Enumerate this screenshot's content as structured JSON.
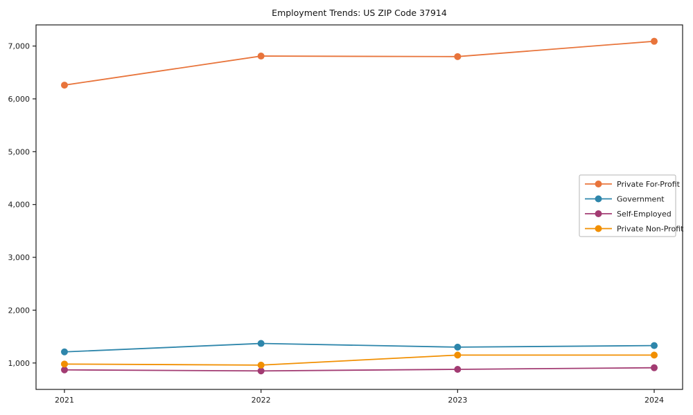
{
  "chart_data": {
    "type": "line",
    "title": "Employment Trends: US ZIP Code 37914",
    "x": [
      2021,
      2022,
      2023,
      2024
    ],
    "xtick_labels": [
      "2021",
      "2022",
      "2023",
      "2024"
    ],
    "series": [
      {
        "name": "Private For-Profit",
        "color": "#E8743B",
        "values": [
          6260,
          6810,
          6800,
          7090
        ]
      },
      {
        "name": "Government",
        "color": "#2E86AB",
        "values": [
          1210,
          1370,
          1300,
          1330
        ]
      },
      {
        "name": "Self-Employed",
        "color": "#A23B72",
        "values": [
          870,
          850,
          880,
          910
        ]
      },
      {
        "name": "Private Non-Profit",
        "color": "#F18F01",
        "values": [
          980,
          960,
          1150,
          1150
        ]
      }
    ],
    "ylim": [
      500,
      7400
    ],
    "yticks": [
      1000,
      2000,
      3000,
      4000,
      5000,
      6000,
      7000
    ],
    "ytick_labels": [
      "1,000",
      "2,000",
      "3,000",
      "4,000",
      "5,000",
      "6,000",
      "7,000"
    ],
    "grid": false,
    "legend_position": "right-middle",
    "axis_color": "#1a1a1a",
    "legend_border_color": "#b5b5b5"
  }
}
